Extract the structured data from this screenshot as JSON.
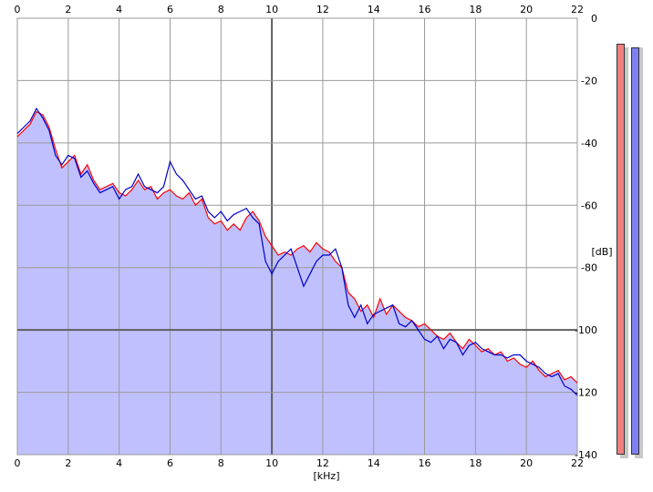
{
  "chart_data": {
    "type": "area",
    "xlabel": "[kHz]",
    "ylabel": "[dB]",
    "xlim": [
      0,
      22
    ],
    "ylim": [
      -140,
      0
    ],
    "x_ticks": [
      "0",
      "2",
      "4",
      "6",
      "8",
      "10",
      "12",
      "14",
      "16",
      "18",
      "20",
      "22"
    ],
    "y_ticks": [
      "0",
      "-20",
      "-40",
      "-60",
      "-80",
      "-100",
      "-120",
      "-140"
    ],
    "grid": true,
    "background_color": "#ffffff",
    "fill_color": "#c0c0ff",
    "series": [
      {
        "color": "#ff0000",
        "x": [
          0.0,
          0.25,
          0.5,
          0.75,
          1.0,
          1.25,
          1.5,
          1.75,
          2.0,
          2.25,
          2.5,
          2.75,
          3.0,
          3.25,
          3.5,
          3.75,
          4.0,
          4.25,
          4.5,
          4.75,
          5.0,
          5.25,
          5.5,
          5.75,
          6.0,
          6.25,
          6.5,
          6.75,
          7.0,
          7.25,
          7.5,
          7.75,
          8.0,
          8.25,
          8.5,
          8.75,
          9.0,
          9.25,
          9.5,
          9.75,
          10.0,
          10.25,
          10.5,
          10.75,
          11.0,
          11.25,
          11.5,
          11.75,
          12.0,
          12.25,
          12.5,
          12.75,
          13.0,
          13.25,
          13.5,
          13.75,
          14.0,
          14.25,
          14.5,
          14.75,
          15.0,
          15.25,
          15.5,
          15.75,
          16.0,
          16.25,
          16.5,
          16.75,
          17.0,
          17.25,
          17.5,
          17.75,
          18.0,
          18.25,
          18.5,
          18.75,
          19.0,
          19.25,
          19.5,
          19.75,
          20.0,
          20.25,
          20.5,
          20.75,
          21.0,
          21.25,
          21.5,
          21.75,
          22.0
        ],
        "values": [
          -38,
          -36,
          -34,
          -30,
          -31,
          -35,
          -42,
          -48,
          -46,
          -44,
          -50,
          -47,
          -52,
          -55,
          -54,
          -53,
          -56,
          -57,
          -55,
          -52,
          -55,
          -54,
          -58,
          -56,
          -55,
          -57,
          -58,
          -56,
          -60,
          -58,
          -64,
          -66,
          -65,
          -68,
          -66,
          -68,
          -64,
          -62,
          -65,
          -70,
          -73,
          -76,
          -75,
          -76,
          -74,
          -73,
          -75,
          -72,
          -74,
          -75,
          -78,
          -80,
          -88,
          -90,
          -94,
          -92,
          -96,
          -90,
          -95,
          -92,
          -94,
          -96,
          -97,
          -99,
          -98,
          -100,
          -102,
          -103,
          -101,
          -104,
          -106,
          -103,
          -105,
          -107,
          -106,
          -108,
          -107,
          -110,
          -109,
          -111,
          -112,
          -110,
          -113,
          -115,
          -114,
          -113,
          -116,
          -115,
          -117
        ]
      },
      {
        "color": "#0000c8",
        "x": [
          0.0,
          0.25,
          0.5,
          0.75,
          1.0,
          1.25,
          1.5,
          1.75,
          2.0,
          2.25,
          2.5,
          2.75,
          3.0,
          3.25,
          3.5,
          3.75,
          4.0,
          4.25,
          4.5,
          4.75,
          5.0,
          5.25,
          5.5,
          5.75,
          6.0,
          6.25,
          6.5,
          6.75,
          7.0,
          7.25,
          7.5,
          7.75,
          8.0,
          8.25,
          8.5,
          8.75,
          9.0,
          9.25,
          9.5,
          9.75,
          10.0,
          10.25,
          10.5,
          10.75,
          11.0,
          11.25,
          11.5,
          11.75,
          12.0,
          12.25,
          12.5,
          12.75,
          13.0,
          13.25,
          13.5,
          13.75,
          14.0,
          14.25,
          14.5,
          14.75,
          15.0,
          15.25,
          15.5,
          15.75,
          16.0,
          16.25,
          16.5,
          16.75,
          17.0,
          17.25,
          17.5,
          17.75,
          18.0,
          18.25,
          18.5,
          18.75,
          19.0,
          19.25,
          19.5,
          19.75,
          20.0,
          20.25,
          20.5,
          20.75,
          21.0,
          21.25,
          21.5,
          21.75,
          22.0
        ],
        "values": [
          -37,
          -35,
          -33,
          -29,
          -32,
          -36,
          -44,
          -47,
          -44,
          -45,
          -51,
          -49,
          -53,
          -56,
          -55,
          -54,
          -58,
          -55,
          -54,
          -50,
          -54,
          -55,
          -56,
          -54,
          -46,
          -50,
          -52,
          -55,
          -58,
          -57,
          -62,
          -64,
          -62,
          -65,
          -63,
          -62,
          -61,
          -64,
          -66,
          -78,
          -82,
          -78,
          -76,
          -74,
          -80,
          -86,
          -82,
          -78,
          -76,
          -76,
          -74,
          -80,
          -92,
          -96,
          -92,
          -98,
          -95,
          -94,
          -93,
          -92,
          -98,
          -99,
          -97,
          -100,
          -103,
          -104,
          -102,
          -106,
          -103,
          -104,
          -108,
          -105,
          -104,
          -106,
          -107,
          -108,
          -108,
          -109,
          -108,
          -108,
          -110,
          -111,
          -112,
          -114,
          -115,
          -114,
          -118,
          -119,
          -121
        ]
      }
    ]
  },
  "meters": [
    {
      "color": "#f08080"
    },
    {
      "color": "#8080f0"
    }
  ]
}
